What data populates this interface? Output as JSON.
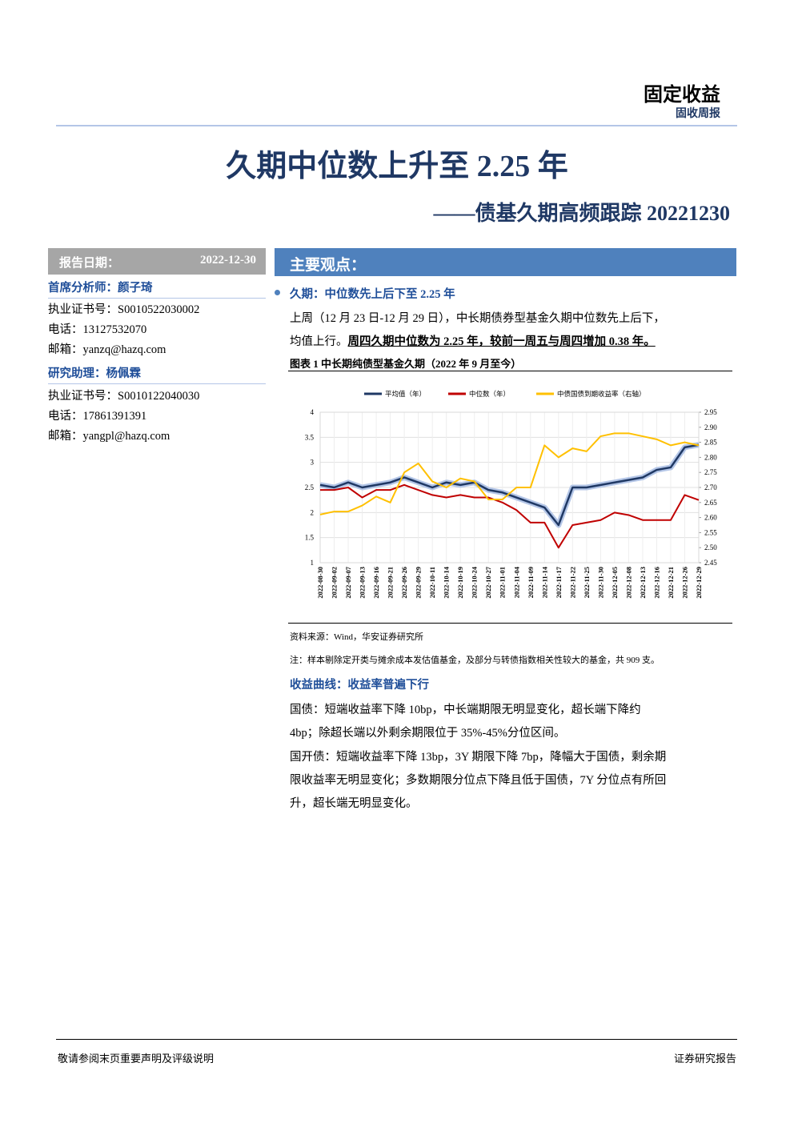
{
  "header": {
    "section": "固定收益",
    "report_type": "固收周报",
    "title": "久期中位数上升至 2.25 年",
    "subtitle": "——债基久期高频跟踪 20221230"
  },
  "sidebar": {
    "date_label": "报告日期：",
    "date": "2022-12-30",
    "analyst": "首席分析师：颜子琦",
    "analyst_lines": [
      "执业证书号：S0010522030002",
      "电话：13127532070",
      "邮箱：yanzq@hazq.com"
    ],
    "assistant": "研究助理：杨佩霖",
    "assistant_lines": [
      "执业证书号：S0010122040030",
      "电话：17861391391",
      "邮箱：yangpl@hazq.com"
    ]
  },
  "main": {
    "banner": "主要观点：",
    "bullet": "久期：中位数先上后下至 2.25 年",
    "para1_a": "上周（12 月 23 日-12 月 29 日），中长期债券型基金久期中位数先上后下，",
    "para1_b": "均值上行。",
    "para1_emph": "周四久期中位数为 2.25 年，较前一周五与周四增加 0.38 年。",
    "figure_caption": "图表 1  中长期纯债型基金久期（2022 年 9 月至今）",
    "source": "资料来源：Wind，华安证券研究所",
    "note": "注：样本剔除定开类与摊余成本发估值基金，及部分与转债指数相关性较大的基金，共 909 支。",
    "section2": "收益曲线：收益率普遍下行",
    "para2": [
      "国债：短端收益率下降 10bp，中长端期限无明显变化，超长端下降约",
      "4bp；除超长端以外剩余期限位于 35%-45%分位区间。",
      "国开债：短端收益率下降 13bp，3Y 期限下降 7bp，降幅大于国债，剩余期",
      "限收益率无明显变化；多数期限分位点下降且低于国债，7Y 分位点有所回",
      "升，超长端无明显变化。"
    ]
  },
  "footer": {
    "left": "敬请参阅末页重要声明及评级说明",
    "right": "证券研究报告"
  },
  "chart_data": {
    "type": "line",
    "categories": [
      "2022-08-30",
      "2022-09-02",
      "2022-09-07",
      "2022-09-13",
      "2022-09-16",
      "2022-09-21",
      "2022-09-26",
      "2022-09-29",
      "2022-10-11",
      "2022-10-14",
      "2022-10-19",
      "2022-10-24",
      "2022-10-27",
      "2022-11-01",
      "2022-11-04",
      "2022-11-09",
      "2022-11-14",
      "2022-11-17",
      "2022-11-22",
      "2022-11-25",
      "2022-11-30",
      "2022-12-05",
      "2022-12-08",
      "2022-12-13",
      "2022-12-16",
      "2022-12-21",
      "2022-12-26",
      "2022-12-29"
    ],
    "ylim": [
      1,
      4
    ],
    "yticks": [
      1,
      1.5,
      2,
      2.5,
      3,
      3.5,
      4
    ],
    "y2lim": [
      2.45,
      2.95
    ],
    "y2ticks": [
      2.45,
      {
        "value": 2.5,
        "label": "2.50"
      },
      2.55,
      {
        "value": 2.6,
        "label": "2.60"
      },
      2.65,
      {
        "value": 2.7,
        "label": "2.70"
      },
      2.75,
      {
        "value": 2.8,
        "label": "2.80"
      },
      2.85,
      {
        "value": 2.9,
        "label": "2.90"
      },
      2.95
    ],
    "series": [
      {
        "name": "平均值（年）",
        "color": "#1f3864",
        "values": [
          2.55,
          2.5,
          2.6,
          2.5,
          2.55,
          2.6,
          2.7,
          2.6,
          2.5,
          2.6,
          2.55,
          2.6,
          2.45,
          2.4,
          2.3,
          2.2,
          2.1,
          1.75,
          2.5,
          2.5,
          2.55,
          2.6,
          2.65,
          2.7,
          2.85,
          2.9,
          3.3,
          3.35
        ]
      },
      {
        "name": "中位数（年）",
        "color": "#c00000",
        "values": [
          2.45,
          2.45,
          2.5,
          2.3,
          2.45,
          2.45,
          2.55,
          2.45,
          2.35,
          2.3,
          2.35,
          2.3,
          2.3,
          2.2,
          2.05,
          1.8,
          1.8,
          1.3,
          1.75,
          1.8,
          1.85,
          2.0,
          1.95,
          1.85,
          1.85,
          1.85,
          2.35,
          2.25
        ]
      },
      {
        "name": "中债国债到期收益率（右轴）",
        "color": "#ffc000",
        "axis": "y2",
        "values": [
          2.61,
          2.62,
          2.62,
          2.64,
          2.67,
          2.65,
          2.75,
          2.78,
          2.72,
          2.7,
          2.73,
          2.72,
          2.66,
          2.66,
          2.7,
          2.7,
          2.84,
          2.8,
          2.83,
          2.82,
          2.87,
          2.88,
          2.88,
          2.87,
          2.86,
          2.84,
          2.85,
          2.84
        ]
      }
    ],
    "grid": true
  }
}
